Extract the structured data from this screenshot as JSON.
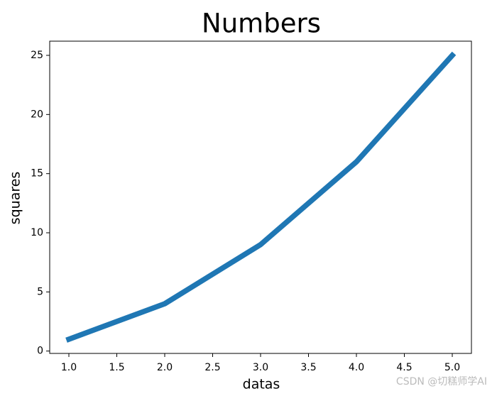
{
  "chart_data": {
    "type": "line",
    "title": "Numbers",
    "x_label": "datas",
    "y_label": "squares",
    "x": [
      1,
      2,
      3,
      4,
      5
    ],
    "series": [
      {
        "name": "squares",
        "color": "#1f77b4",
        "values": [
          1,
          4,
          9,
          16,
          25
        ]
      }
    ],
    "xlim": [
      0.8,
      5.2
    ],
    "xticks": [
      {
        "value": 1,
        "label": "1.0"
      },
      1.5,
      {
        "value": 2,
        "label": "2.0"
      },
      2.5,
      {
        "value": 3,
        "label": "3.0"
      },
      3.5,
      {
        "value": 4,
        "label": "4.0"
      },
      4.5,
      {
        "value": 5,
        "label": "5.0"
      }
    ],
    "ylim": [
      -0.2,
      26.2
    ],
    "yticks": [
      0,
      5,
      10,
      15,
      20,
      25
    ],
    "grid": false
  },
  "watermark": "CSDN @切糕师学AI"
}
